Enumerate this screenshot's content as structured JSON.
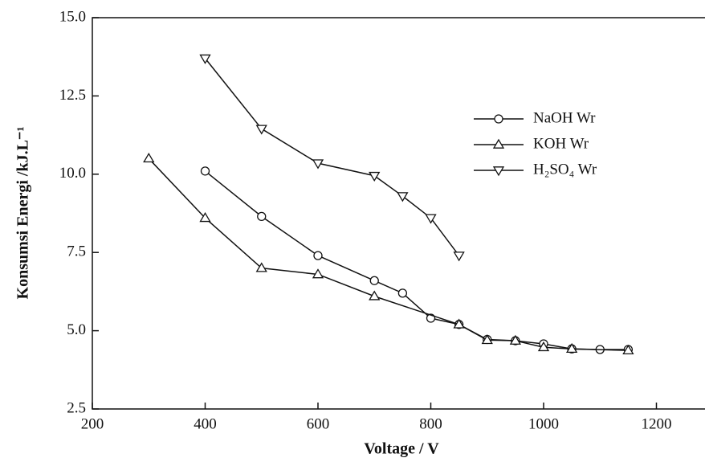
{
  "chart_data": {
    "type": "line",
    "x_label": "Voltage / V",
    "y_label": "Konsumsi Energi /kJ.L⁻¹",
    "xlim": [
      200,
      1300
    ],
    "xticks": [
      200,
      400,
      600,
      800,
      1000,
      1200
    ],
    "ylim": [
      2.5,
      15
    ],
    "yticks": [
      2.5,
      {
        "value": 5,
        "label": "5.0"
      },
      7.5,
      {
        "value": 10,
        "label": "10.0"
      },
      12.5,
      {
        "value": 15,
        "label": "15.0"
      }
    ],
    "legend": "upper right",
    "series": [
      {
        "name": "NaOH Wr",
        "color": "#111111",
        "marker": "circle",
        "x": [
          400,
          500,
          600,
          700,
          750,
          800,
          850,
          900,
          950,
          1000,
          1050,
          1100,
          1150
        ],
        "values": [
          10.1,
          8.65,
          7.4,
          6.6,
          6.2,
          5.4,
          5.2,
          4.72,
          4.68,
          4.58,
          4.42,
          4.4,
          4.4
        ]
      },
      {
        "name": "KOH Wr",
        "color": "#111111",
        "marker": "triangle-up",
        "x": [
          300,
          400,
          500,
          600,
          700,
          850,
          900,
          950,
          1000,
          1050,
          1150
        ],
        "values": [
          10.5,
          8.6,
          7.0,
          6.8,
          6.1,
          5.2,
          4.7,
          4.68,
          4.47,
          4.42,
          4.37
        ]
      },
      {
        "name": "H₂SO₄ Wr",
        "color": "#111111",
        "marker": "triangle-down",
        "x": [
          400,
          500,
          600,
          700,
          750,
          800,
          850
        ],
        "values": [
          13.7,
          11.45,
          10.35,
          9.95,
          9.3,
          8.6,
          7.4
        ]
      }
    ]
  }
}
